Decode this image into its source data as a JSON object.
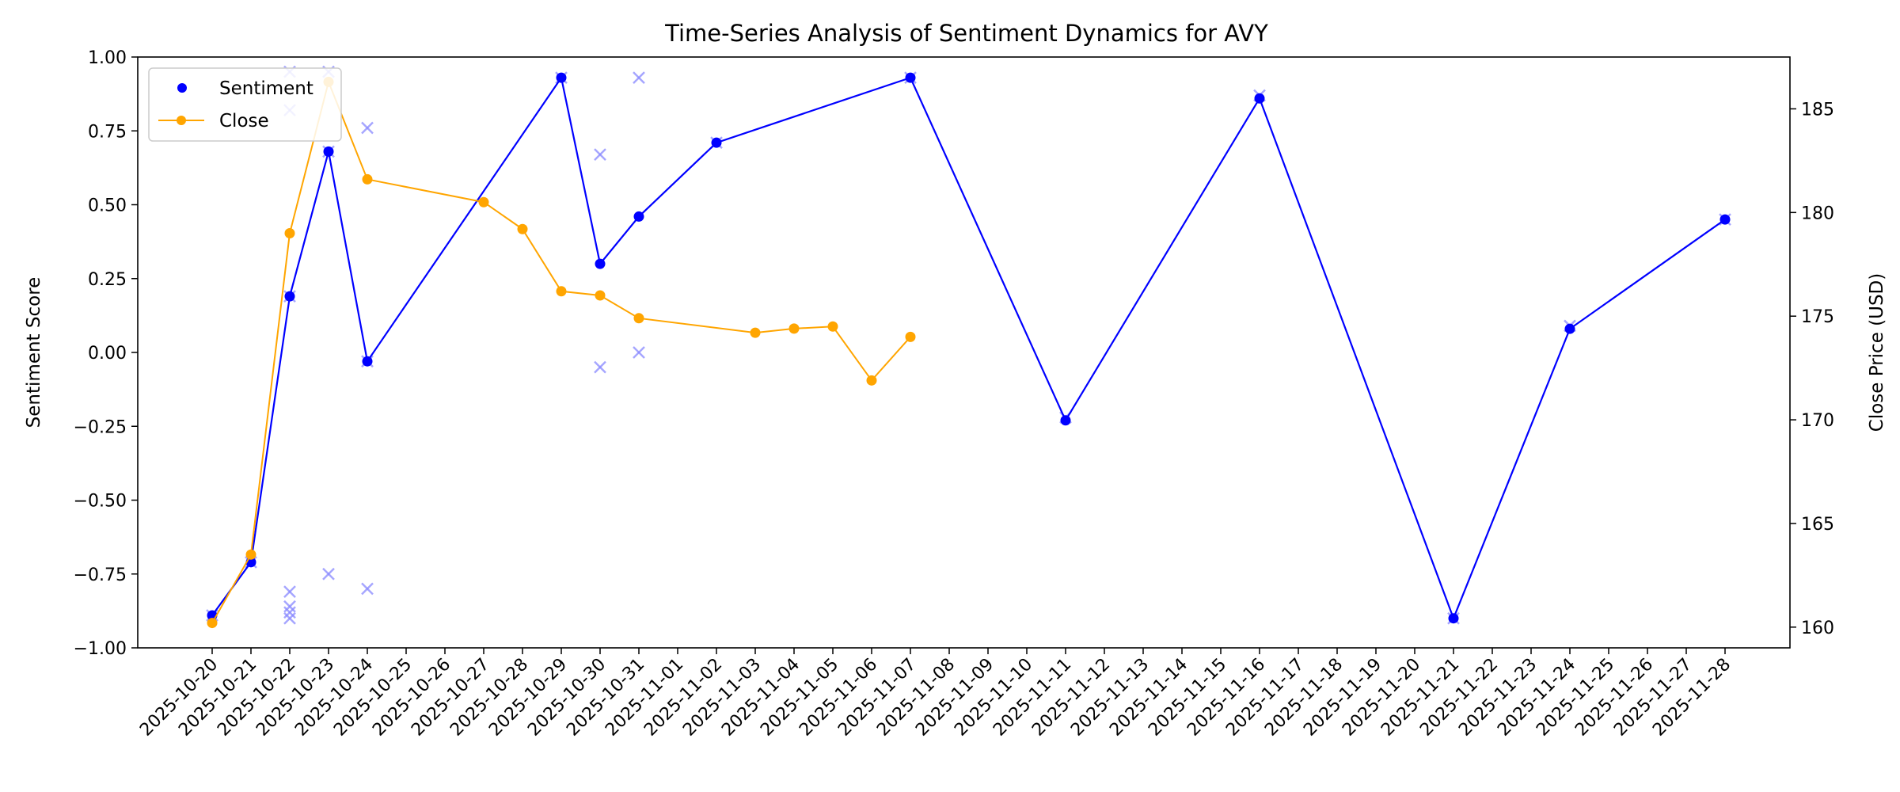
{
  "chart_data": {
    "type": "line",
    "title": "Time-Series Analysis of Sentiment Dynamics for AVY",
    "xlabel": "",
    "ylabel": "Sentiment Score",
    "y2label": "Close Price (USD)",
    "ylim": [
      -1.0,
      1.0
    ],
    "y2lim": [
      159,
      187.5
    ],
    "yticks": [
      "−1.00",
      "−0.75",
      "−0.50",
      "−0.25",
      "0.00",
      "0.25",
      "0.50",
      "0.75",
      "1.00"
    ],
    "ytick_values": [
      -1.0,
      -0.75,
      -0.5,
      -0.25,
      0.0,
      0.25,
      0.5,
      0.75,
      1.0
    ],
    "y2ticks": [
      "160",
      "165",
      "170",
      "175",
      "180",
      "185"
    ],
    "y2tick_values": [
      160,
      165,
      170,
      175,
      180,
      185
    ],
    "categories": [
      "2025-10-20",
      "2025-10-21",
      "2025-10-22",
      "2025-10-23",
      "2025-10-24",
      "2025-10-25",
      "2025-10-26",
      "2025-10-27",
      "2025-10-28",
      "2025-10-29",
      "2025-10-30",
      "2025-10-31",
      "2025-11-01",
      "2025-11-02",
      "2025-11-03",
      "2025-11-04",
      "2025-11-05",
      "2025-11-06",
      "2025-11-07",
      "2025-11-08",
      "2025-11-09",
      "2025-11-10",
      "2025-11-11",
      "2025-11-12",
      "2025-11-13",
      "2025-11-14",
      "2025-11-15",
      "2025-11-16",
      "2025-11-17",
      "2025-11-18",
      "2025-11-19",
      "2025-11-20",
      "2025-11-21",
      "2025-11-22",
      "2025-11-23",
      "2025-11-24",
      "2025-11-25",
      "2025-11-26",
      "2025-11-27",
      "2025-11-28"
    ],
    "series": [
      {
        "name": "Sentiment",
        "axis": "left",
        "color": "#0000ff",
        "points": [
          [
            "2025-10-20",
            -0.89
          ],
          [
            "2025-10-21",
            -0.71
          ],
          [
            "2025-10-22",
            0.19
          ],
          [
            "2025-10-23",
            0.68
          ],
          [
            "2025-10-24",
            -0.03
          ],
          [
            "2025-10-29",
            0.93
          ],
          [
            "2025-10-30",
            0.3
          ],
          [
            "2025-10-31",
            0.46
          ],
          [
            "2025-11-02",
            0.71
          ],
          [
            "2025-11-07",
            0.93
          ],
          [
            "2025-11-11",
            -0.23
          ],
          [
            "2025-11-16",
            0.86
          ],
          [
            "2025-11-21",
            -0.9
          ],
          [
            "2025-11-24",
            0.08
          ],
          [
            "2025-11-28",
            0.45
          ]
        ]
      },
      {
        "name": "Close",
        "axis": "right",
        "color": "#ffa500",
        "points": [
          [
            "2025-10-20",
            160.2
          ],
          [
            "2025-10-21",
            163.5
          ],
          [
            "2025-10-22",
            179.0
          ],
          [
            "2025-10-23",
            186.3
          ],
          [
            "2025-10-24",
            181.6
          ],
          [
            "2025-10-27",
            180.5
          ],
          [
            "2025-10-28",
            179.2
          ],
          [
            "2025-10-29",
            176.2
          ],
          [
            "2025-10-30",
            176.0
          ],
          [
            "2025-10-31",
            174.9
          ],
          [
            "2025-11-03",
            174.2
          ],
          [
            "2025-11-04",
            174.4
          ],
          [
            "2025-11-05",
            174.5
          ],
          [
            "2025-11-06",
            171.9
          ],
          [
            "2025-11-07",
            174.0
          ]
        ]
      }
    ],
    "raw_sentiment_points": [
      [
        "2025-10-20",
        -0.89
      ],
      [
        "2025-10-21",
        -0.71
      ],
      [
        "2025-10-22",
        -0.81
      ],
      [
        "2025-10-22",
        -0.86
      ],
      [
        "2025-10-22",
        -0.88
      ],
      [
        "2025-10-22",
        -0.9
      ],
      [
        "2025-10-22",
        0.82
      ],
      [
        "2025-10-22",
        0.95
      ],
      [
        "2025-10-22",
        0.19
      ],
      [
        "2025-10-23",
        -0.75
      ],
      [
        "2025-10-23",
        0.95
      ],
      [
        "2025-10-23",
        0.68
      ],
      [
        "2025-10-24",
        -0.8
      ],
      [
        "2025-10-24",
        0.76
      ],
      [
        "2025-10-24",
        -0.03
      ],
      [
        "2025-10-29",
        0.93
      ],
      [
        "2025-10-30",
        0.67
      ],
      [
        "2025-10-30",
        -0.05
      ],
      [
        "2025-10-31",
        0.93
      ],
      [
        "2025-10-31",
        0.0
      ],
      [
        "2025-11-02",
        0.71
      ],
      [
        "2025-11-07",
        0.93
      ],
      [
        "2025-11-11",
        -0.22
      ],
      [
        "2025-11-16",
        0.87
      ],
      [
        "2025-11-21",
        -0.9
      ],
      [
        "2025-11-24",
        0.09
      ],
      [
        "2025-11-28",
        0.45
      ]
    ],
    "raw_color": "#8888ff",
    "legend": {
      "placement": "top-left",
      "entries": [
        "Sentiment",
        "Close"
      ]
    },
    "grid": false
  }
}
